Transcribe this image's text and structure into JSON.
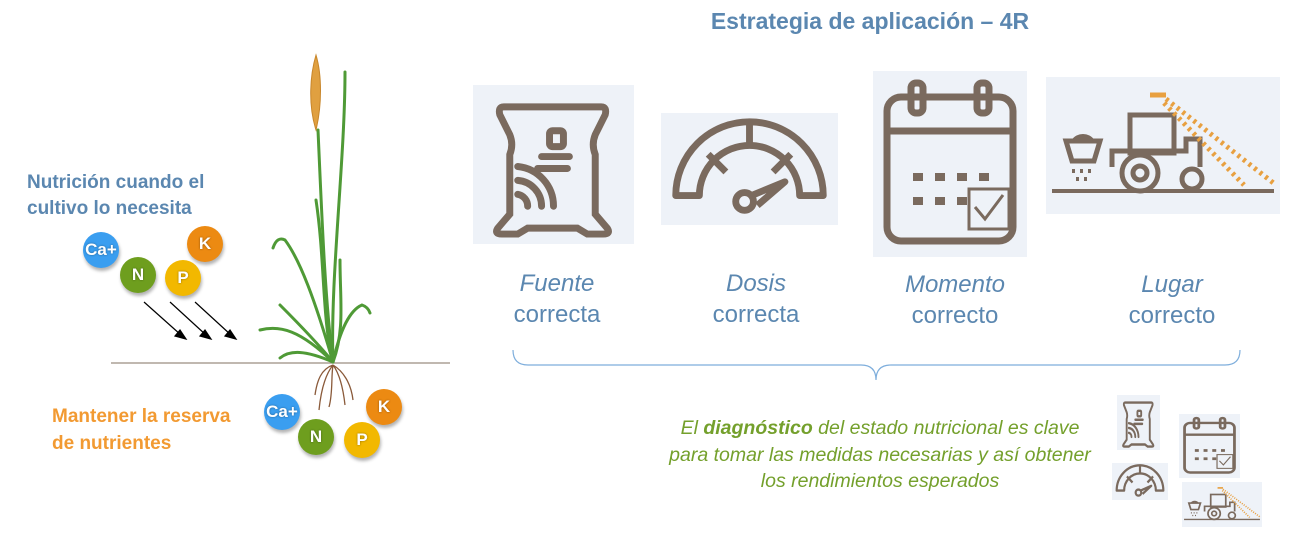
{
  "title": "Estrategia de aplicación – 4R",
  "left": {
    "top_text": [
      "Nutrición cuando el",
      "cultivo lo necesita"
    ],
    "bottom_text": [
      "Mantener la reserva",
      "de nutrientes"
    ],
    "nutrients": [
      "Ca+",
      "N",
      "P",
      "K"
    ]
  },
  "strategies": [
    {
      "word": "Fuente",
      "sub": "correcta",
      "icon": "fertilizer-bag-icon"
    },
    {
      "word": "Dosis",
      "sub": "correcta",
      "icon": "gauge-icon"
    },
    {
      "word": "Momento",
      "sub": "correcto",
      "icon": "calendar-icon"
    },
    {
      "word": "Lugar",
      "sub": "correcto",
      "icon": "tractor-spreader-icon"
    }
  ],
  "diagnosis": {
    "pre": "El ",
    "bold": "diagnóstico",
    "post": " del estado nutricional es clave",
    "line2": "para tomar las medidas necesarias y así obtener",
    "line3": "los rendimientos esperados"
  },
  "colors": {
    "title": "#5b87b0",
    "icon": "#7a6a5e",
    "icon_bg": "#eef2f8",
    "green": "#74a02c",
    "orange": "#f29a32",
    "ca": "#3a9ef0",
    "n": "#6e9e1e",
    "p": "#f2b800",
    "k": "#ec8a12"
  }
}
